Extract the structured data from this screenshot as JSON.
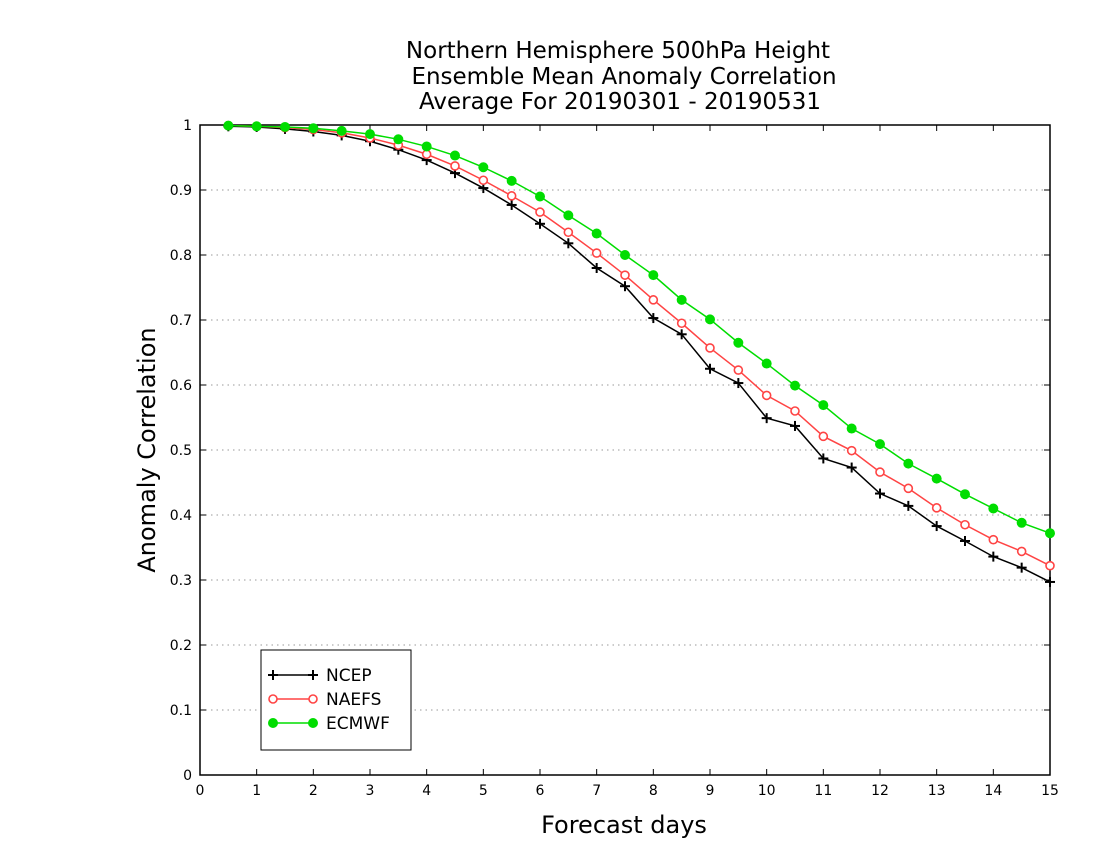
{
  "chart_data": {
    "type": "line",
    "title_lines": [
      "Northern Hemisphere 500hPa Height",
      "Ensemble Mean Anomaly Correlation",
      "Average For 20190301 - 20190531"
    ],
    "xlabel": "Forecast days",
    "ylabel": "Anomaly Correlation",
    "xlim": [
      0,
      15
    ],
    "ylim": [
      0,
      1
    ],
    "x_ticks": [
      "0",
      "1",
      "2",
      "3",
      "4",
      "5",
      "6",
      "7",
      "8",
      "9",
      "10",
      "11",
      "12",
      "13",
      "14",
      "15"
    ],
    "y_ticks": [
      "0",
      "0.1",
      "0.2",
      "0.3",
      "0.4",
      "0.5",
      "0.6",
      "0.7",
      "0.8",
      "0.9",
      "1"
    ],
    "grid": "horizontal dotted",
    "legend_position": "bottom-left",
    "x": [
      0.5,
      1,
      1.5,
      2,
      2.5,
      3,
      3.5,
      4,
      4.5,
      5,
      5.5,
      6,
      6.5,
      7,
      7.5,
      8,
      8.5,
      9,
      9.5,
      10,
      10.5,
      11,
      11.5,
      12,
      12.5,
      13,
      13.5,
      14,
      14.5,
      15
    ],
    "series": [
      {
        "name": "NCEP",
        "color": "#000000",
        "marker": "plus",
        "values": [
          0.998,
          0.997,
          0.994,
          0.99,
          0.984,
          0.975,
          0.962,
          0.946,
          0.926,
          0.903,
          0.877,
          0.848,
          0.818,
          0.78,
          0.752,
          0.703,
          0.678,
          0.625,
          0.603,
          0.549,
          0.537,
          0.487,
          0.473,
          0.433,
          0.414,
          0.383,
          0.36,
          0.336,
          0.319,
          0.297
        ]
      },
      {
        "name": "NAEFS",
        "color": "#ff4444",
        "marker": "open-circle",
        "values": [
          0.999,
          0.998,
          0.996,
          0.993,
          0.988,
          0.98,
          0.969,
          0.955,
          0.937,
          0.915,
          0.891,
          0.866,
          0.835,
          0.803,
          0.769,
          0.731,
          0.695,
          0.657,
          0.623,
          0.584,
          0.56,
          0.521,
          0.499,
          0.466,
          0.441,
          0.411,
          0.385,
          0.362,
          0.344,
          0.322
        ]
      },
      {
        "name": "ECMWF",
        "color": "#00dd00",
        "marker": "filled-circle",
        "values": [
          0.999,
          0.998,
          0.997,
          0.995,
          0.991,
          0.986,
          0.978,
          0.967,
          0.953,
          0.935,
          0.914,
          0.89,
          0.861,
          0.833,
          0.8,
          0.769,
          0.731,
          0.701,
          0.665,
          0.633,
          0.599,
          0.569,
          0.533,
          0.509,
          0.479,
          0.456,
          0.432,
          0.41,
          0.388,
          0.372
        ]
      }
    ]
  }
}
